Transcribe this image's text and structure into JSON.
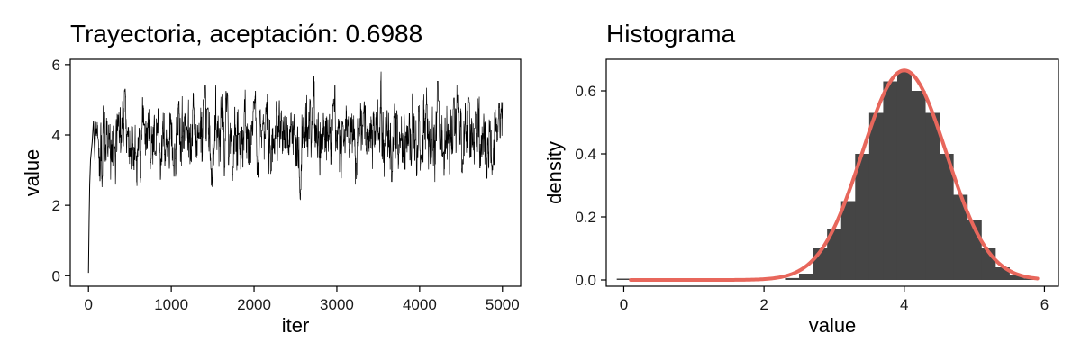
{
  "chart_data": [
    {
      "type": "line",
      "title": "Trayectoria, aceptación:  0.6988",
      "xlabel": "iter",
      "ylabel": "value",
      "xlim": [
        -220,
        5220
      ],
      "ylim": [
        -0.3,
        6.15
      ],
      "xticks": [
        0,
        1000,
        2000,
        3000,
        4000,
        5000
      ],
      "yticks": [
        0,
        2,
        4,
        6
      ],
      "grid": false,
      "trace": {
        "n_iter": 5000,
        "start_value": 0.08,
        "burnin_points": [
          [
            0,
            0.08
          ],
          [
            8,
            1.6
          ],
          [
            15,
            2.6
          ],
          [
            25,
            3.3
          ],
          [
            45,
            3.8
          ],
          [
            60,
            4.4
          ],
          [
            80,
            3.2
          ]
        ],
        "mean": 4.0,
        "sd": 0.6,
        "min": 1.9,
        "max": 5.9
      }
    },
    {
      "type": "bar",
      "title": "Histograma",
      "xlabel": "value",
      "ylabel": "density",
      "xlim": [
        -0.25,
        6.2
      ],
      "ylim": [
        -0.02,
        0.7
      ],
      "xticks": [
        0,
        2,
        4,
        6
      ],
      "yticks": [
        0.0,
        0.2,
        0.4,
        0.6
      ],
      "yticklabels": [
        "0.0",
        "0.2",
        "0.4",
        "0.6"
      ],
      "grid": false,
      "bar_color": "#454545",
      "bins": [
        {
          "x0": -0.1,
          "x1": 0.1,
          "density": 0.001
        },
        {
          "x0": 2.3,
          "x1": 2.5,
          "density": 0.006
        },
        {
          "x0": 2.5,
          "x1": 2.7,
          "density": 0.02
        },
        {
          "x0": 2.7,
          "x1": 2.9,
          "density": 0.1
        },
        {
          "x0": 2.9,
          "x1": 3.1,
          "density": 0.16
        },
        {
          "x0": 3.1,
          "x1": 3.3,
          "density": 0.25
        },
        {
          "x0": 3.3,
          "x1": 3.5,
          "density": 0.4
        },
        {
          "x0": 3.5,
          "x1": 3.7,
          "density": 0.53
        },
        {
          "x0": 3.7,
          "x1": 3.9,
          "density": 0.63
        },
        {
          "x0": 3.9,
          "x1": 4.1,
          "density": 0.66
        },
        {
          "x0": 4.1,
          "x1": 4.3,
          "density": 0.6
        },
        {
          "x0": 4.3,
          "x1": 4.5,
          "density": 0.53
        },
        {
          "x0": 4.5,
          "x1": 4.7,
          "density": 0.4
        },
        {
          "x0": 4.7,
          "x1": 4.9,
          "density": 0.27
        },
        {
          "x0": 4.9,
          "x1": 5.1,
          "density": 0.19
        },
        {
          "x0": 5.1,
          "x1": 5.3,
          "density": 0.1
        },
        {
          "x0": 5.3,
          "x1": 5.5,
          "density": 0.04
        },
        {
          "x0": 5.5,
          "x1": 5.7,
          "density": 0.015
        },
        {
          "x0": 5.7,
          "x1": 5.9,
          "density": 0.005
        }
      ],
      "density_curve": {
        "distribution": "normal",
        "mean": 4.0,
        "sd": 0.6,
        "x_range": [
          0.1,
          5.9
        ],
        "color": "#e8675c"
      }
    }
  ]
}
